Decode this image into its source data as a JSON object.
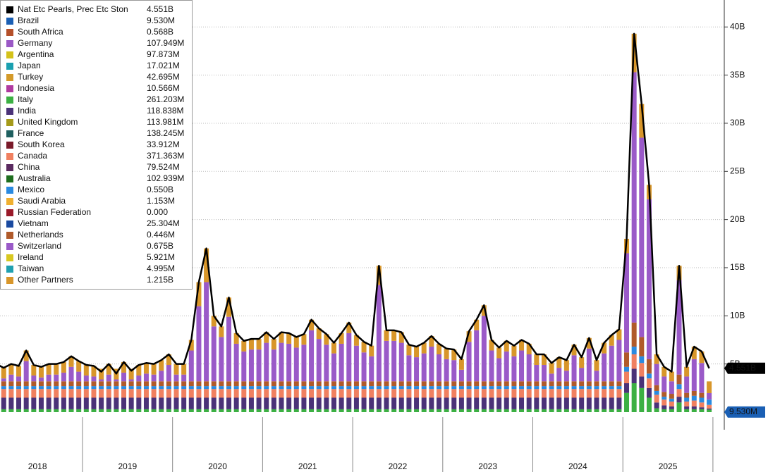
{
  "chart_data": {
    "type": "bar",
    "years": [
      "2018",
      "2019",
      "2020",
      "2021",
      "2022",
      "2023",
      "2024",
      "2025"
    ],
    "ylim": [
      0,
      42.8
    ],
    "yticks": [
      {
        "value": 5,
        "label": "5B"
      },
      {
        "value": 10,
        "label": "10B"
      },
      {
        "value": 15,
        "label": "15B"
      },
      {
        "value": 20,
        "label": "20B"
      },
      {
        "value": 25,
        "label": "25B"
      },
      {
        "value": 30,
        "label": "30B"
      },
      {
        "value": 35,
        "label": "35B"
      },
      {
        "value": 40,
        "label": "40B"
      }
    ],
    "grid": true,
    "legend": [
      {
        "name": "Nat Etc Pearls, Prec Etc Ston",
        "color": "#000000",
        "value_label": "4.551B",
        "values": [
          5.0,
          4.6,
          5.0,
          4.8,
          6.4,
          4.9,
          4.7,
          5.0,
          5.0,
          5.2,
          5.8,
          5.3,
          4.9,
          4.8,
          4.2,
          5.0,
          4.0,
          5.2,
          4.3,
          4.9,
          5.1,
          5.0,
          5.4,
          6.0,
          5.0,
          5.0,
          7.5,
          13.5,
          17.0,
          10.0,
          8.9,
          11.9,
          8.2,
          7.4,
          7.6,
          7.6,
          8.3,
          7.6,
          8.3,
          8.2,
          7.8,
          8.1,
          9.6,
          8.7,
          8.1,
          7.2,
          8.2,
          9.3,
          8.0,
          7.3,
          6.9,
          15.2,
          8.5,
          8.5,
          8.3,
          7.0,
          6.8,
          7.2,
          7.9,
          7.1,
          6.6,
          6.5,
          5.5,
          8.4,
          9.6,
          11.1,
          7.5,
          6.7,
          7.4,
          6.9,
          7.5,
          7.1,
          6.0,
          6.0,
          5.1,
          5.7,
          5.4,
          7.0,
          5.7,
          7.7,
          5.4,
          7.2,
          8.0,
          8.6,
          18.0,
          39.3,
          32.0,
          23.6,
          6.0,
          4.7,
          4.2,
          15.2,
          4.7,
          6.8,
          6.3,
          4.551
        ]
      },
      {
        "name": "Brazil",
        "color": "#1a5fb4",
        "value_label": "9.530M",
        "value": 0.00953
      },
      {
        "name": "South Africa",
        "color": "#b5502a",
        "value_label": "0.568B",
        "value": 0.568
      },
      {
        "name": "Germany",
        "color": "#9b59c6",
        "value_label": "107.949M",
        "value": 0.107949
      },
      {
        "name": "Argentina",
        "color": "#d4c21a",
        "value_label": "97.873M",
        "value": 0.097873
      },
      {
        "name": "Japan",
        "color": "#1aa0b0",
        "value_label": "17.021M",
        "value": 0.017021
      },
      {
        "name": "Turkey",
        "color": "#d49a2a",
        "value_label": "42.695M",
        "value": 0.042695
      },
      {
        "name": "Indonesia",
        "color": "#b03aa0",
        "value_label": "10.566M",
        "value": 0.010566
      },
      {
        "name": "Italy",
        "color": "#3cb043",
        "value_label": "261.203M",
        "values": [
          0.3,
          0.3,
          0.3,
          0.3,
          0.3,
          0.3,
          0.3,
          0.3,
          0.3,
          0.3,
          0.3,
          0.3,
          0.3,
          0.3,
          0.3,
          0.3,
          0.3,
          0.3,
          0.3,
          0.3,
          0.3,
          0.3,
          0.3,
          0.3,
          0.3,
          0.3,
          0.3,
          0.3,
          0.3,
          0.3,
          0.3,
          0.3,
          0.3,
          0.3,
          0.3,
          0.3,
          0.3,
          0.3,
          0.3,
          0.3,
          0.3,
          0.3,
          0.3,
          0.3,
          0.3,
          0.3,
          0.3,
          0.3,
          0.3,
          0.3,
          0.3,
          0.3,
          0.3,
          0.3,
          0.3,
          0.3,
          0.3,
          0.3,
          0.3,
          0.3,
          0.3,
          0.3,
          0.3,
          0.3,
          0.3,
          0.3,
          0.3,
          0.3,
          0.3,
          0.3,
          0.3,
          0.3,
          0.3,
          0.3,
          0.3,
          0.3,
          0.3,
          0.3,
          0.3,
          0.3,
          0.3,
          0.3,
          0.3,
          0.3,
          2.0,
          3.0,
          2.5,
          1.5,
          0.4,
          0.3,
          0.3,
          1.0,
          0.3,
          0.3,
          0.3,
          0.261203
        ]
      },
      {
        "name": "India",
        "color": "#4b3278",
        "value_label": "118.838M",
        "values": [
          1.2,
          1.2,
          1.2,
          1.2,
          1.2,
          1.2,
          1.2,
          1.2,
          1.2,
          1.2,
          1.2,
          1.2,
          1.2,
          1.2,
          1.2,
          1.2,
          1.2,
          1.2,
          1.2,
          1.2,
          1.2,
          1.2,
          1.2,
          1.2,
          1.2,
          1.2,
          1.2,
          1.2,
          1.2,
          1.2,
          1.2,
          1.2,
          1.2,
          1.2,
          1.2,
          1.2,
          1.2,
          1.2,
          1.2,
          1.2,
          1.2,
          1.2,
          1.2,
          1.2,
          1.2,
          1.2,
          1.2,
          1.2,
          1.2,
          1.2,
          1.2,
          1.2,
          1.2,
          1.2,
          1.2,
          1.2,
          1.2,
          1.2,
          1.2,
          1.2,
          1.2,
          1.2,
          1.2,
          1.2,
          1.2,
          1.2,
          1.2,
          1.2,
          1.2,
          1.2,
          1.2,
          1.2,
          1.2,
          1.2,
          1.2,
          1.2,
          1.2,
          1.2,
          1.2,
          1.2,
          1.2,
          1.2,
          1.2,
          1.2,
          1.0,
          1.5,
          1.2,
          1.0,
          0.6,
          0.4,
          0.3,
          0.6,
          0.3,
          0.3,
          0.2,
          0.118838
        ]
      },
      {
        "name": "United Kingdom",
        "color": "#a59a1a",
        "value_label": "113.981M",
        "value": 0.113981
      },
      {
        "name": "France",
        "color": "#1f6060",
        "value_label": "138.245M",
        "value": 0.138245
      },
      {
        "name": "South Korea",
        "color": "#7a1a2a",
        "value_label": "33.912M",
        "value": 0.033912
      },
      {
        "name": "Canada",
        "color": "#f08060",
        "value_label": "371.363M",
        "values": [
          0.9,
          0.9,
          0.9,
          0.9,
          0.9,
          0.9,
          0.9,
          0.9,
          0.9,
          0.9,
          0.9,
          0.9,
          0.9,
          0.9,
          0.9,
          0.9,
          0.9,
          0.9,
          0.9,
          0.9,
          0.9,
          0.9,
          0.9,
          0.9,
          0.9,
          0.9,
          0.9,
          0.9,
          0.9,
          0.9,
          0.9,
          0.9,
          0.9,
          0.9,
          0.9,
          0.9,
          0.9,
          0.9,
          0.9,
          0.9,
          0.9,
          0.9,
          0.9,
          0.9,
          0.9,
          0.9,
          0.9,
          0.9,
          0.9,
          0.9,
          0.9,
          0.9,
          0.9,
          0.9,
          0.9,
          0.9,
          0.9,
          0.9,
          0.9,
          0.9,
          0.9,
          0.9,
          0.9,
          0.9,
          0.9,
          0.9,
          0.9,
          0.9,
          0.9,
          0.9,
          0.9,
          0.9,
          0.9,
          0.9,
          0.9,
          0.9,
          0.9,
          0.9,
          0.9,
          0.9,
          0.9,
          0.9,
          0.9,
          0.9,
          1.2,
          1.5,
          1.4,
          1.0,
          0.8,
          0.6,
          0.5,
          0.8,
          0.5,
          0.6,
          0.5,
          0.371363
        ]
      },
      {
        "name": "China",
        "color": "#5a2a60",
        "value_label": "79.524M",
        "value": 0.079524
      },
      {
        "name": "Australia",
        "color": "#1e6e1e",
        "value_label": "102.939M",
        "value": 0.102939
      },
      {
        "name": "Mexico",
        "color": "#2a8ae0",
        "value_label": "0.550B",
        "values": [
          0.3,
          0.3,
          0.3,
          0.3,
          0.3,
          0.3,
          0.3,
          0.3,
          0.3,
          0.3,
          0.3,
          0.3,
          0.3,
          0.3,
          0.3,
          0.3,
          0.3,
          0.3,
          0.3,
          0.3,
          0.3,
          0.3,
          0.3,
          0.3,
          0.3,
          0.3,
          0.3,
          0.3,
          0.3,
          0.3,
          0.3,
          0.3,
          0.3,
          0.3,
          0.3,
          0.3,
          0.3,
          0.3,
          0.3,
          0.3,
          0.3,
          0.3,
          0.3,
          0.3,
          0.3,
          0.3,
          0.3,
          0.3,
          0.3,
          0.3,
          0.3,
          0.3,
          0.3,
          0.3,
          0.3,
          0.3,
          0.3,
          0.3,
          0.3,
          0.3,
          0.3,
          0.3,
          0.3,
          0.3,
          0.3,
          0.3,
          0.3,
          0.3,
          0.3,
          0.3,
          0.3,
          0.3,
          0.3,
          0.3,
          0.3,
          0.3,
          0.3,
          0.3,
          0.3,
          0.3,
          0.3,
          0.3,
          0.3,
          0.3,
          0.5,
          0.8,
          0.7,
          0.5,
          0.4,
          0.3,
          0.3,
          0.5,
          0.4,
          0.5,
          0.5,
          0.55
        ]
      },
      {
        "name": "Saudi Arabia",
        "color": "#f0b030",
        "value_label": "1.153M",
        "value": 0.001153
      },
      {
        "name": "Russian Federation",
        "color": "#9a1a2a",
        "value_label": "0.000",
        "value": 0
      },
      {
        "name": "Vietnam",
        "color": "#1a4aa0",
        "value_label": "25.304M",
        "value": 0.025304
      },
      {
        "name": "Netherlands",
        "color": "#b05a2a",
        "value_label": "0.446M",
        "values": [
          0.5,
          0.5,
          0.5,
          0.5,
          0.5,
          0.5,
          0.5,
          0.5,
          0.5,
          0.5,
          0.5,
          0.5,
          0.5,
          0.5,
          0.5,
          0.5,
          0.5,
          0.5,
          0.5,
          0.5,
          0.5,
          0.5,
          0.5,
          0.5,
          0.5,
          0.5,
          0.5,
          0.5,
          0.5,
          0.5,
          0.5,
          0.5,
          0.5,
          0.5,
          0.5,
          0.5,
          0.5,
          0.5,
          0.5,
          0.5,
          0.5,
          0.5,
          0.5,
          0.5,
          0.5,
          0.5,
          0.5,
          0.5,
          0.5,
          0.5,
          0.5,
          0.5,
          0.5,
          0.5,
          0.5,
          0.5,
          0.5,
          0.5,
          0.5,
          0.5,
          0.5,
          0.5,
          0.5,
          0.5,
          0.5,
          0.5,
          0.5,
          0.5,
          0.5,
          0.5,
          0.5,
          0.5,
          0.5,
          0.5,
          0.5,
          0.5,
          0.5,
          0.5,
          0.5,
          0.5,
          0.5,
          0.5,
          0.5,
          0.5,
          1.5,
          2.5,
          2.0,
          1.5,
          0.6,
          0.5,
          0.5,
          1.0,
          0.5,
          0.5,
          0.5,
          0.000446
        ]
      },
      {
        "name": "Switzerland",
        "color": "#9a5ac8",
        "value_label": "0.675B",
        "values": [
          0.7,
          0.3,
          0.7,
          0.5,
          2.1,
          0.6,
          0.4,
          0.7,
          0.7,
          0.9,
          1.5,
          1.0,
          0.6,
          0.5,
          0.2,
          0.7,
          0.2,
          0.9,
          0.2,
          0.6,
          0.8,
          0.7,
          1.1,
          1.7,
          0.7,
          0.7,
          3.2,
          7.8,
          10.3,
          5.7,
          4.6,
          6.7,
          3.9,
          3.1,
          3.3,
          3.3,
          4.0,
          3.3,
          4.0,
          3.9,
          3.5,
          3.8,
          5.3,
          4.4,
          3.8,
          2.9,
          3.9,
          5.0,
          3.7,
          3.0,
          2.6,
          10.0,
          4.2,
          4.2,
          4.0,
          2.7,
          2.5,
          2.9,
          3.6,
          2.8,
          2.3,
          2.2,
          1.2,
          4.1,
          5.3,
          6.8,
          3.2,
          2.4,
          3.1,
          2.6,
          3.2,
          2.8,
          1.7,
          1.7,
          0.8,
          1.4,
          1.1,
          2.7,
          1.4,
          3.4,
          1.1,
          2.9,
          3.7,
          4.3,
          10.3,
          26.0,
          20.7,
          16.6,
          2.2,
          1.6,
          1.3,
          9.8,
          1.7,
          3.3,
          3.1,
          0.675
        ]
      },
      {
        "name": "Ireland",
        "color": "#d8c820",
        "value_label": "5.921M",
        "value": 0.005921
      },
      {
        "name": "Taiwan",
        "color": "#20a0b0",
        "value_label": "4.995M",
        "value": 0.004995
      },
      {
        "name": "Other Partners",
        "color": "#d8962a",
        "value_label": "1.215B",
        "values": [
          1.1,
          1.1,
          1.1,
          1.1,
          1.1,
          1.1,
          1.1,
          1.1,
          1.1,
          1.1,
          1.1,
          1.1,
          1.1,
          1.1,
          1.1,
          1.1,
          1.1,
          1.1,
          1.1,
          1.1,
          1.1,
          1.1,
          1.1,
          1.1,
          1.1,
          1.1,
          1.1,
          2.5,
          3.5,
          1.1,
          1.1,
          2.0,
          1.1,
          1.1,
          1.1,
          1.1,
          1.1,
          1.1,
          1.1,
          1.1,
          1.1,
          1.1,
          1.1,
          1.1,
          1.1,
          1.1,
          1.1,
          1.1,
          1.1,
          1.1,
          1.1,
          2.0,
          1.1,
          1.1,
          1.1,
          1.1,
          1.1,
          1.1,
          1.1,
          1.1,
          1.1,
          1.1,
          1.1,
          1.1,
          1.1,
          1.1,
          1.1,
          1.1,
          1.1,
          1.1,
          1.1,
          1.1,
          1.1,
          1.1,
          1.1,
          1.1,
          1.1,
          1.1,
          1.1,
          1.1,
          1.1,
          1.1,
          1.1,
          1.1,
          1.5,
          4.0,
          3.5,
          1.5,
          1.0,
          1.0,
          1.0,
          1.5,
          1.0,
          1.3,
          1.2,
          1.215
        ]
      }
    ]
  }
}
